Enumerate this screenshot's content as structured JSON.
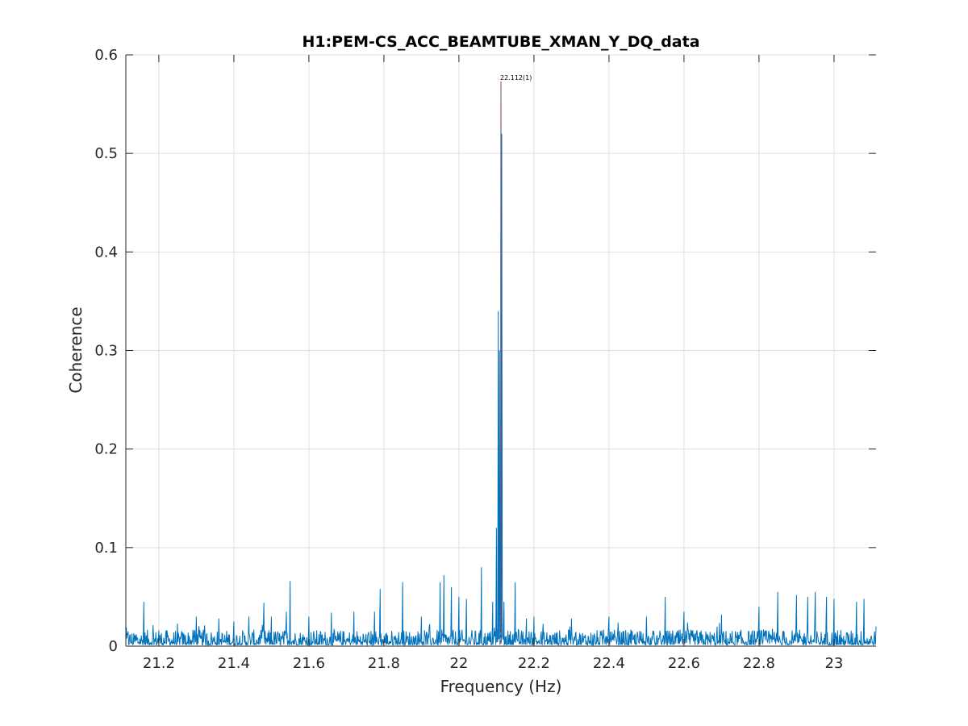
{
  "chart_data": {
    "type": "line",
    "title": "H1:PEM-CS_ACC_BEAMTUBE_XMAN_Y_DQ_data",
    "xlabel": "Frequency (Hz)",
    "ylabel": "Coherence",
    "xlim": [
      21.112,
      23.112
    ],
    "ylim": [
      0,
      0.6
    ],
    "xticks": [
      21.2,
      21.4,
      21.6,
      21.8,
      22,
      22.2,
      22.4,
      22.6,
      22.8,
      23
    ],
    "xtick_labels": [
      "21.2",
      "21.4",
      "21.6",
      "21.8",
      "22",
      "22.2",
      "22.4",
      "22.6",
      "22.8",
      "23"
    ],
    "yticks": [
      0,
      0.1,
      0.2,
      0.3,
      0.4,
      0.5,
      0.6
    ],
    "ytick_labels": [
      "0",
      "0.1",
      "0.2",
      "0.3",
      "0.4",
      "0.5",
      "0.6"
    ],
    "grid": true,
    "series": [
      {
        "color": "#0072bd",
        "baseline": 0.006,
        "noise": 0.006,
        "x": [
          21.112,
          21.118,
          21.14,
          21.16,
          21.2,
          21.24,
          21.3,
          21.36,
          21.4,
          21.44,
          21.48,
          21.5,
          21.54,
          21.55,
          21.6,
          21.66,
          21.72,
          21.775,
          21.79,
          21.85,
          21.9,
          21.95,
          21.96,
          21.98,
          22.0,
          22.02,
          22.06,
          22.09,
          22.1,
          22.105,
          22.108,
          22.112,
          22.114,
          22.12,
          22.15,
          22.18,
          22.2,
          22.3,
          22.4,
          22.5,
          22.55,
          22.6,
          22.7,
          22.8,
          22.85,
          22.9,
          22.93,
          22.95,
          22.98,
          23.0,
          23.06,
          23.08,
          23.112
        ],
        "y": [
          0.018,
          0.015,
          0.012,
          0.045,
          0.016,
          0.014,
          0.03,
          0.028,
          0.025,
          0.03,
          0.044,
          0.03,
          0.035,
          0.066,
          0.03,
          0.034,
          0.035,
          0.035,
          0.058,
          0.065,
          0.03,
          0.065,
          0.072,
          0.06,
          0.05,
          0.048,
          0.08,
          0.045,
          0.12,
          0.34,
          0.3,
          0.573,
          0.52,
          0.045,
          0.065,
          0.028,
          0.03,
          0.028,
          0.03,
          0.03,
          0.05,
          0.035,
          0.032,
          0.04,
          0.055,
          0.052,
          0.05,
          0.055,
          0.05,
          0.048,
          0.045,
          0.048,
          0.02
        ]
      }
    ],
    "reference_line": {
      "x": 22.112,
      "color": "#d9231d",
      "style": "dashed"
    },
    "annotations": [
      {
        "text": "22.112(1)",
        "x": 22.112,
        "y": 0.573
      }
    ]
  }
}
